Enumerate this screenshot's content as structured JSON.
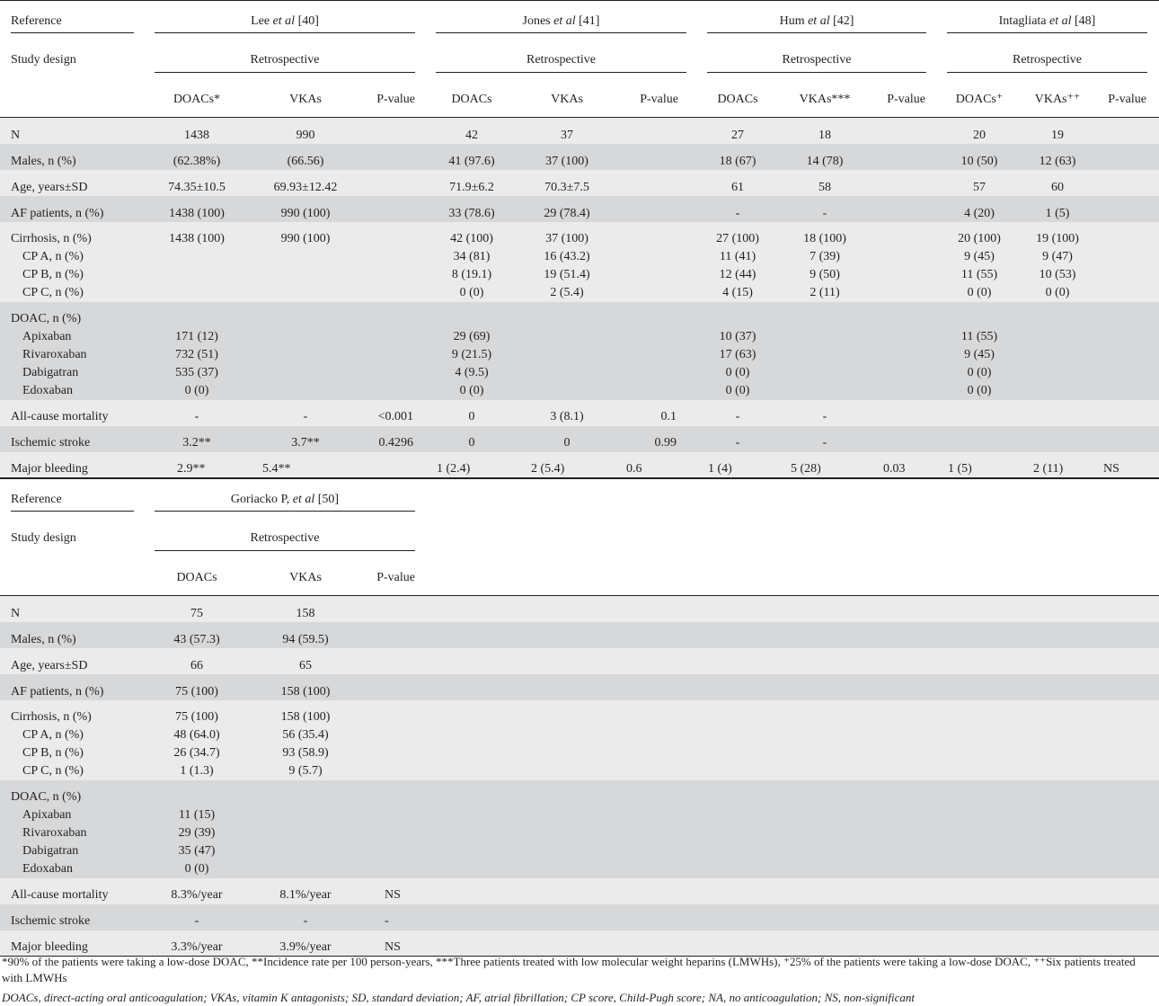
{
  "table1": {
    "header": {
      "reference_label": "Reference",
      "design_label": "Study design",
      "studies": [
        {
          "ref_pre": "Lee ",
          "ref_etal": "et al",
          "ref_post": " [40]",
          "design": "Retrospective",
          "cols": [
            "DOACs*",
            "VKAs",
            "P-value"
          ]
        },
        {
          "ref_pre": "Jones ",
          "ref_etal": "et al",
          "ref_post": " [41]",
          "design": "Retrospective",
          "cols": [
            "DOACs",
            "VKAs",
            "P-value"
          ]
        },
        {
          "ref_pre": "Hum ",
          "ref_etal": "et al",
          "ref_post": " [42]",
          "design": "Retrospective",
          "cols": [
            "DOACs",
            "VKAs***",
            "P-value"
          ]
        },
        {
          "ref_pre": "Intagliata ",
          "ref_etal": "et al",
          "ref_post": " [48]",
          "design": "Retrospective",
          "cols": [
            "DOACs⁺",
            "VKAs⁺⁺",
            "P-value"
          ]
        }
      ]
    },
    "rows": {
      "n": {
        "label": "N",
        "v": [
          "1438",
          "990",
          "",
          "42",
          "37",
          "",
          "27",
          "18",
          "",
          "20",
          "19",
          ""
        ]
      },
      "males": {
        "label": "Males, n (%)",
        "v": [
          "(62.38%)",
          "(66.56)",
          "",
          "41 (97.6)",
          "37 (100)",
          "",
          "18 (67)",
          "14 (78)",
          "",
          "10 (50)",
          "12 (63)",
          ""
        ]
      },
      "age": {
        "label": "Age, years±SD",
        "v": [
          "74.35±10.5",
          "69.93±12.42",
          "",
          "71.9±6.2",
          "70.3±7.5",
          "",
          "61",
          "58",
          "",
          "57",
          "60",
          ""
        ]
      },
      "af": {
        "label": "AF patients, n (%)",
        "v": [
          "1438 (100)",
          "990 (100)",
          "",
          "33 (78.6)",
          "29 (78.4)",
          "",
          "-",
          "-",
          "",
          "4 (20)",
          "1 (5)",
          ""
        ]
      },
      "cirrhosis": {
        "label": "Cirrhosis, n (%)",
        "v": [
          "1438 (100)",
          "990 (100)",
          "",
          "42 (100)",
          "37 (100)",
          "",
          "27 (100)",
          "18 (100)",
          "",
          "20 (100)",
          "19 (100)",
          ""
        ]
      },
      "cpa": {
        "label": "CP A, n (%)",
        "v": [
          "",
          "",
          "",
          "34 (81)",
          "16 (43.2)",
          "",
          "11 (41)",
          "7 (39)",
          "",
          "9 (45)",
          "9 (47)",
          ""
        ]
      },
      "cpb": {
        "label": "CP B, n (%)",
        "v": [
          "",
          "",
          "",
          "8 (19.1)",
          "19 (51.4)",
          "",
          "12 (44)",
          "9 (50)",
          "",
          "11 (55)",
          "10 (53)",
          ""
        ]
      },
      "cpc": {
        "label": "CP C, n (%)",
        "v": [
          "",
          "",
          "",
          "0 (0)",
          "2 (5.4)",
          "",
          "4 (15)",
          "2 (11)",
          "",
          "0 (0)",
          "0 (0)",
          ""
        ]
      },
      "doac": {
        "label": "DOAC, n (%)",
        "v": [
          "",
          "",
          "",
          "",
          "",
          "",
          "",
          "",
          "",
          "",
          "",
          ""
        ]
      },
      "apix": {
        "label": "Apixaban",
        "v": [
          "171 (12)",
          "",
          "",
          "29 (69)",
          "",
          "",
          "10 (37)",
          "",
          "",
          "11 (55)",
          "",
          ""
        ]
      },
      "riva": {
        "label": "Rivaroxaban",
        "v": [
          "732 (51)",
          "",
          "",
          "9 (21.5)",
          "",
          "",
          "17 (63)",
          "",
          "",
          "9 (45)",
          "",
          ""
        ]
      },
      "dabi": {
        "label": "Dabigatran",
        "v": [
          "535 (37)",
          "",
          "",
          "4 (9.5)",
          "",
          "",
          "0 (0)",
          "",
          "",
          "0 (0)",
          "",
          ""
        ]
      },
      "edox": {
        "label": "Edoxaban",
        "v": [
          "0 (0)",
          "",
          "",
          "0 (0)",
          "",
          "",
          "0 (0)",
          "",
          "",
          "0 (0)",
          "",
          ""
        ]
      },
      "mort": {
        "label": "All-cause mortality",
        "v": [
          "-",
          "-",
          "<0.001",
          "0",
          "3 (8.1)",
          "0.1",
          "-",
          "-",
          "",
          "",
          "",
          ""
        ]
      },
      "stroke": {
        "label": "Ischemic stroke",
        "v": [
          "3.2**",
          "3.7**",
          "0.4296",
          "0",
          "0",
          "0.99",
          "-",
          "-",
          "",
          "",
          "",
          ""
        ]
      },
      "bleed": {
        "label": "Major bleeding",
        "v": [
          "2.9**",
          "5.4**",
          "",
          "1 (2.4)",
          "2 (5.4)",
          "0.6",
          "1 (4)",
          "5 (28)",
          "0.03",
          "1 (5)",
          "2 (11)",
          "NS"
        ]
      }
    }
  },
  "table2": {
    "header": {
      "reference_label": "Reference",
      "design_label": "Study design",
      "study": {
        "ref_pre": "Goriacko P, ",
        "ref_etal": "et al",
        "ref_post": " [50]",
        "design": "Retrospective",
        "cols": [
          "DOACs",
          "VKAs",
          "P-value"
        ]
      }
    },
    "rows": {
      "n": {
        "label": "N",
        "v": [
          "75",
          "158",
          ""
        ]
      },
      "males": {
        "label": "Males, n (%)",
        "v": [
          "43 (57.3)",
          "94 (59.5)",
          ""
        ]
      },
      "age": {
        "label": "Age, years±SD",
        "v": [
          "66",
          "65",
          ""
        ]
      },
      "af": {
        "label": "AF patients, n (%)",
        "v": [
          "75 (100)",
          "158 (100)",
          ""
        ]
      },
      "cirrhosis": {
        "label": "Cirrhosis, n (%)",
        "v": [
          "75 (100)",
          "158 (100)",
          ""
        ]
      },
      "cpa": {
        "label": "CP A, n (%)",
        "v": [
          "48 (64.0)",
          "56 (35.4)",
          ""
        ]
      },
      "cpb": {
        "label": "CP B, n (%)",
        "v": [
          "26 (34.7)",
          "93 (58.9)",
          ""
        ]
      },
      "cpc": {
        "label": "CP C, n (%)",
        "v": [
          "1 (1.3)",
          "9 (5.7)",
          ""
        ]
      },
      "doac": {
        "label": "DOAC, n (%)",
        "v": [
          "",
          "",
          ""
        ]
      },
      "apix": {
        "label": "Apixaban",
        "v": [
          "11 (15)",
          "",
          ""
        ]
      },
      "riva": {
        "label": "Rivaroxaban",
        "v": [
          "29 (39)",
          "",
          ""
        ]
      },
      "dabi": {
        "label": "Dabigatran",
        "v": [
          "35 (47)",
          "",
          ""
        ]
      },
      "edox": {
        "label": "Edoxaban",
        "v": [
          "0 (0)",
          "",
          ""
        ]
      },
      "mort": {
        "label": "All-cause mortality",
        "v": [
          "8.3%/year",
          "8.1%/year",
          "NS"
        ]
      },
      "stroke": {
        "label": "Ischemic stroke",
        "v": [
          "-",
          "-",
          "-"
        ]
      },
      "bleed": {
        "label": "Major bleeding",
        "v": [
          "3.3%/year",
          "3.9%/year",
          "NS"
        ]
      }
    }
  },
  "footnotes": {
    "line1": "*90% of the patients were taking a low-dose DOAC, **Incidence rate per 100 person-years, ***Three patients treated with low molecular weight heparins (LMWHs), ⁺25% of the patients were taking a low-dose DOAC, ⁺⁺Six patients treated with LMWHs",
    "line2": "DOACs, direct-acting oral anticoagulation; VKAs, vitamin K antagonists; SD, standard deviation; AF, atrial fibrillation; CP score, Child-Pugh score; NA, no anticoagulation; NS, non-significant"
  }
}
